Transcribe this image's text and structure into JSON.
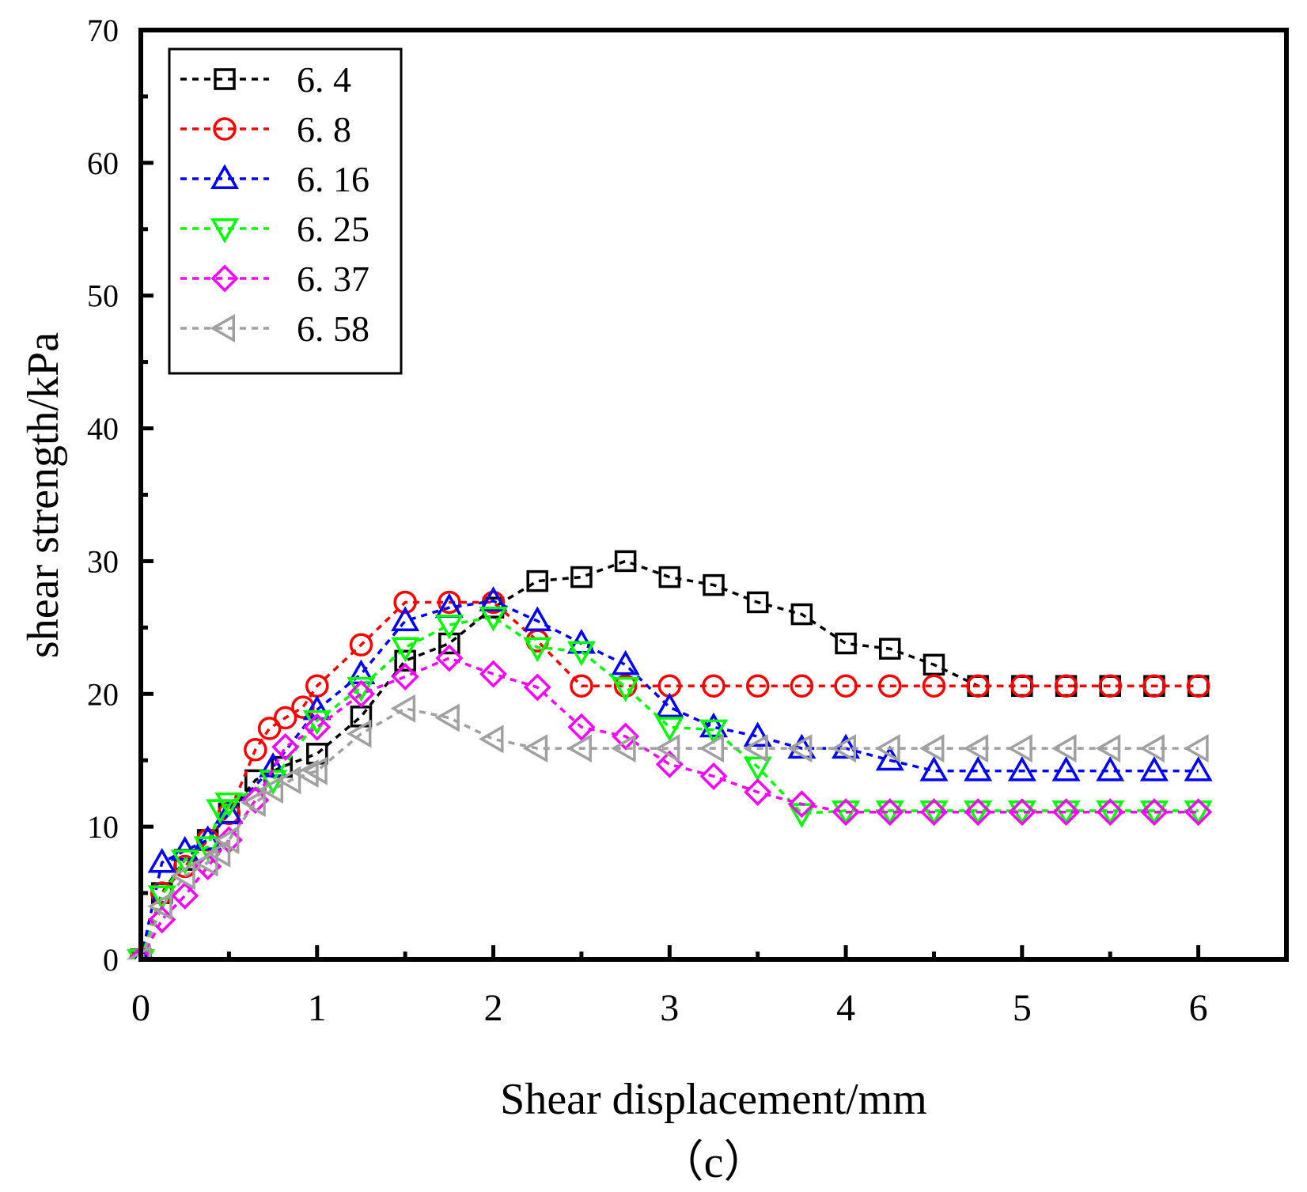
{
  "chart_data": {
    "type": "line",
    "xlabel": "Shear displacement/mm",
    "ylabel": "shear strength/kPa",
    "caption": "（c）",
    "xlim": [
      0,
      6.5
    ],
    "ylim": [
      0,
      70
    ],
    "xticks": [
      "0",
      "1",
      "2",
      "3",
      "4",
      "5",
      "6"
    ],
    "yticks": [
      "0",
      "10",
      "20",
      "30",
      "40",
      "50",
      "60",
      "70"
    ],
    "legend_position": "top-left",
    "series": [
      {
        "name": "6. 4",
        "color": "#000000",
        "marker": "square",
        "x": [
          0,
          0.12,
          0.25,
          0.38,
          0.5,
          0.65,
          0.8,
          1.0,
          1.25,
          1.5,
          1.75,
          2.0,
          2.25,
          2.5,
          2.75,
          3.0,
          3.25,
          3.5,
          3.75,
          4.0,
          4.25,
          4.5,
          4.75,
          5.0,
          5.25,
          5.5,
          5.75,
          6.0
        ],
        "y": [
          0,
          5,
          7.5,
          9,
          11,
          13.5,
          14.5,
          15.5,
          18.3,
          22.5,
          23.8,
          26.5,
          28.5,
          28.8,
          30,
          28.8,
          28.2,
          26.9,
          26,
          23.8,
          23.4,
          22.2,
          20.6,
          20.6,
          20.6,
          20.6,
          20.6,
          20.6
        ]
      },
      {
        "name": "6. 8",
        "color": "#ff0000",
        "marker": "circle",
        "x": [
          0,
          0.12,
          0.25,
          0.38,
          0.5,
          0.65,
          0.73,
          0.82,
          0.92,
          1.0,
          1.25,
          1.5,
          1.75,
          2.0,
          2.25,
          2.5,
          2.75,
          3.0,
          3.25,
          3.5,
          3.75,
          4.0,
          4.25,
          4.5,
          4.75,
          5.0,
          5.25,
          5.5,
          5.75,
          6.0
        ],
        "y": [
          0,
          5,
          7,
          9,
          11,
          15.8,
          17.4,
          18.2,
          19,
          20.6,
          23.7,
          26.9,
          26.9,
          26.9,
          24,
          20.6,
          20.6,
          20.6,
          20.6,
          20.6,
          20.6,
          20.6,
          20.6,
          20.6,
          20.6,
          20.6,
          20.6,
          20.6,
          20.6,
          20.6
        ]
      },
      {
        "name": "6. 16",
        "color": "#0000ff",
        "marker": "triangle-up",
        "x": [
          0,
          0.12,
          0.25,
          0.38,
          0.5,
          0.75,
          1.0,
          1.25,
          1.5,
          1.75,
          2.0,
          2.25,
          2.5,
          2.75,
          3.0,
          3.25,
          3.5,
          3.75,
          4.0,
          4.25,
          4.5,
          4.75,
          5.0,
          5.25,
          5.5,
          5.75,
          6.0
        ],
        "y": [
          0,
          7.3,
          8.2,
          9,
          11,
          14.5,
          18.8,
          21.5,
          25.5,
          26.5,
          27,
          25.5,
          23.8,
          22.2,
          19,
          17.5,
          16.8,
          15.9,
          15.9,
          15,
          14.2,
          14.2,
          14.2,
          14.2,
          14.2,
          14.2,
          14.2
        ]
      },
      {
        "name": "6. 25",
        "color": "#00ff00",
        "marker": "triangle-down",
        "x": [
          0,
          0.12,
          0.25,
          0.38,
          0.45,
          0.5,
          0.75,
          1.0,
          1.25,
          1.5,
          1.75,
          2.0,
          2.25,
          2.5,
          2.75,
          3.0,
          3.25,
          3.5,
          3.75,
          4.0,
          4.25,
          4.5,
          4.75,
          5.0,
          5.25,
          5.5,
          5.75,
          6.0
        ],
        "y": [
          0,
          4.8,
          7.5,
          8.5,
          11.3,
          11.8,
          13.5,
          18,
          20.5,
          23.5,
          25.2,
          25.8,
          23.5,
          23.2,
          20.5,
          17.5,
          17.3,
          14.5,
          11,
          11.2,
          11.2,
          11.2,
          11.2,
          11.2,
          11.2,
          11.2,
          11.2,
          11.2
        ]
      },
      {
        "name": "6. 37",
        "color": "#ff00ff",
        "marker": "diamond",
        "x": [
          0,
          0.12,
          0.25,
          0.38,
          0.5,
          0.65,
          0.82,
          1.0,
          1.25,
          1.5,
          1.75,
          2.0,
          2.25,
          2.5,
          2.75,
          3.0,
          3.25,
          3.5,
          3.75,
          4.0,
          4.25,
          4.5,
          4.75,
          5.0,
          5.25,
          5.5,
          5.75,
          6.0
        ],
        "y": [
          0,
          3,
          4.8,
          7,
          9,
          12,
          16,
          17.5,
          20,
          21.3,
          22.7,
          21.5,
          20.5,
          17.5,
          16.8,
          14.7,
          13.8,
          12.6,
          11.7,
          11.1,
          11.1,
          11.1,
          11.1,
          11.1,
          11.1,
          11.1,
          11.1,
          11.1
        ]
      },
      {
        "name": "6. 58",
        "color": "#a0a0a0",
        "marker": "triangle-left",
        "x": [
          0,
          0.12,
          0.25,
          0.38,
          0.45,
          0.5,
          0.65,
          0.75,
          0.85,
          0.95,
          1.0,
          1.25,
          1.5,
          1.75,
          2.0,
          2.25,
          2.5,
          2.75,
          3.0,
          3.25,
          3.5,
          3.75,
          4.0,
          4.25,
          4.5,
          4.75,
          5.0,
          5.25,
          5.5,
          5.75,
          6.0
        ],
        "y": [
          0,
          4,
          6.3,
          7.3,
          8,
          9,
          11.8,
          12.8,
          13.5,
          14,
          14.2,
          17,
          18.9,
          18.2,
          16.6,
          15.9,
          15.9,
          15.9,
          15.9,
          15.9,
          15.9,
          15.9,
          15.9,
          15.9,
          15.9,
          15.9,
          15.9,
          15.9,
          15.9,
          15.9,
          15.9
        ]
      }
    ]
  }
}
